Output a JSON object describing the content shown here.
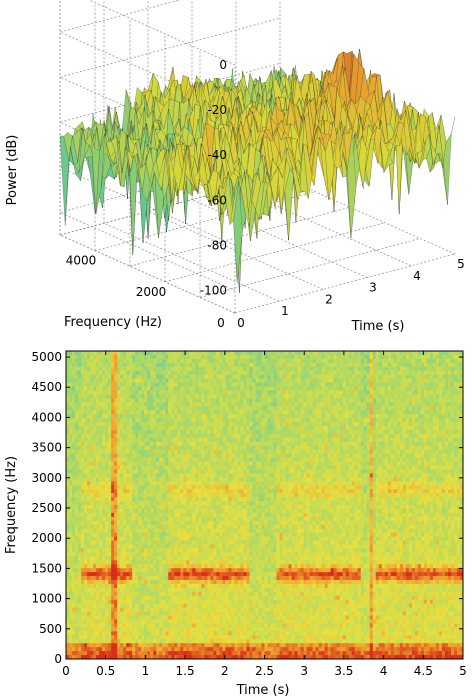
{
  "chart_data": [
    {
      "type": "surface",
      "title": "",
      "zlabel": "Power (dB)",
      "xlabel": "Time (s)",
      "ylabel": "Frequency (Hz)",
      "z_ticks": [
        0,
        -20,
        -40,
        -60,
        -80,
        -100
      ],
      "x_ticks": [
        0,
        1,
        2,
        3,
        4,
        5
      ],
      "y_ticks": [
        0,
        2000,
        4000
      ],
      "xlim": [
        0,
        5
      ],
      "ylim": [
        0,
        5000
      ],
      "zlim": [
        -110,
        0
      ],
      "grid": true,
      "colormap": [
        "#1fb0c8",
        "#6cc88a",
        "#d8d83a",
        "#e8a030",
        "#c0301a"
      ]
    },
    {
      "type": "heatmap",
      "title": "",
      "xlabel": "Time (s)",
      "ylabel": "Frequency (Hz)",
      "x_ticks": [
        "0",
        "0.5",
        "1",
        "1.5",
        "2",
        "2.5",
        "3",
        "3.5",
        "4",
        "4.5",
        "5"
      ],
      "y_ticks": [
        "0",
        "500",
        "1000",
        "1500",
        "2000",
        "2500",
        "3000",
        "3500",
        "4000",
        "4500",
        "5000"
      ],
      "xlim": [
        0,
        5
      ],
      "ylim": [
        0,
        5100
      ],
      "bands_hz": [
        1400,
        2800
      ],
      "tone_segments_s": [
        [
          0.2,
          0.85
        ],
        [
          1.3,
          2.3
        ],
        [
          2.65,
          3.7
        ],
        [
          3.9,
          5.0
        ]
      ],
      "transients_s": [
        0.6,
        3.85
      ],
      "colormap": [
        "#4ec0b8",
        "#a8d868",
        "#e8e040",
        "#f0a030",
        "#d83018"
      ]
    }
  ]
}
